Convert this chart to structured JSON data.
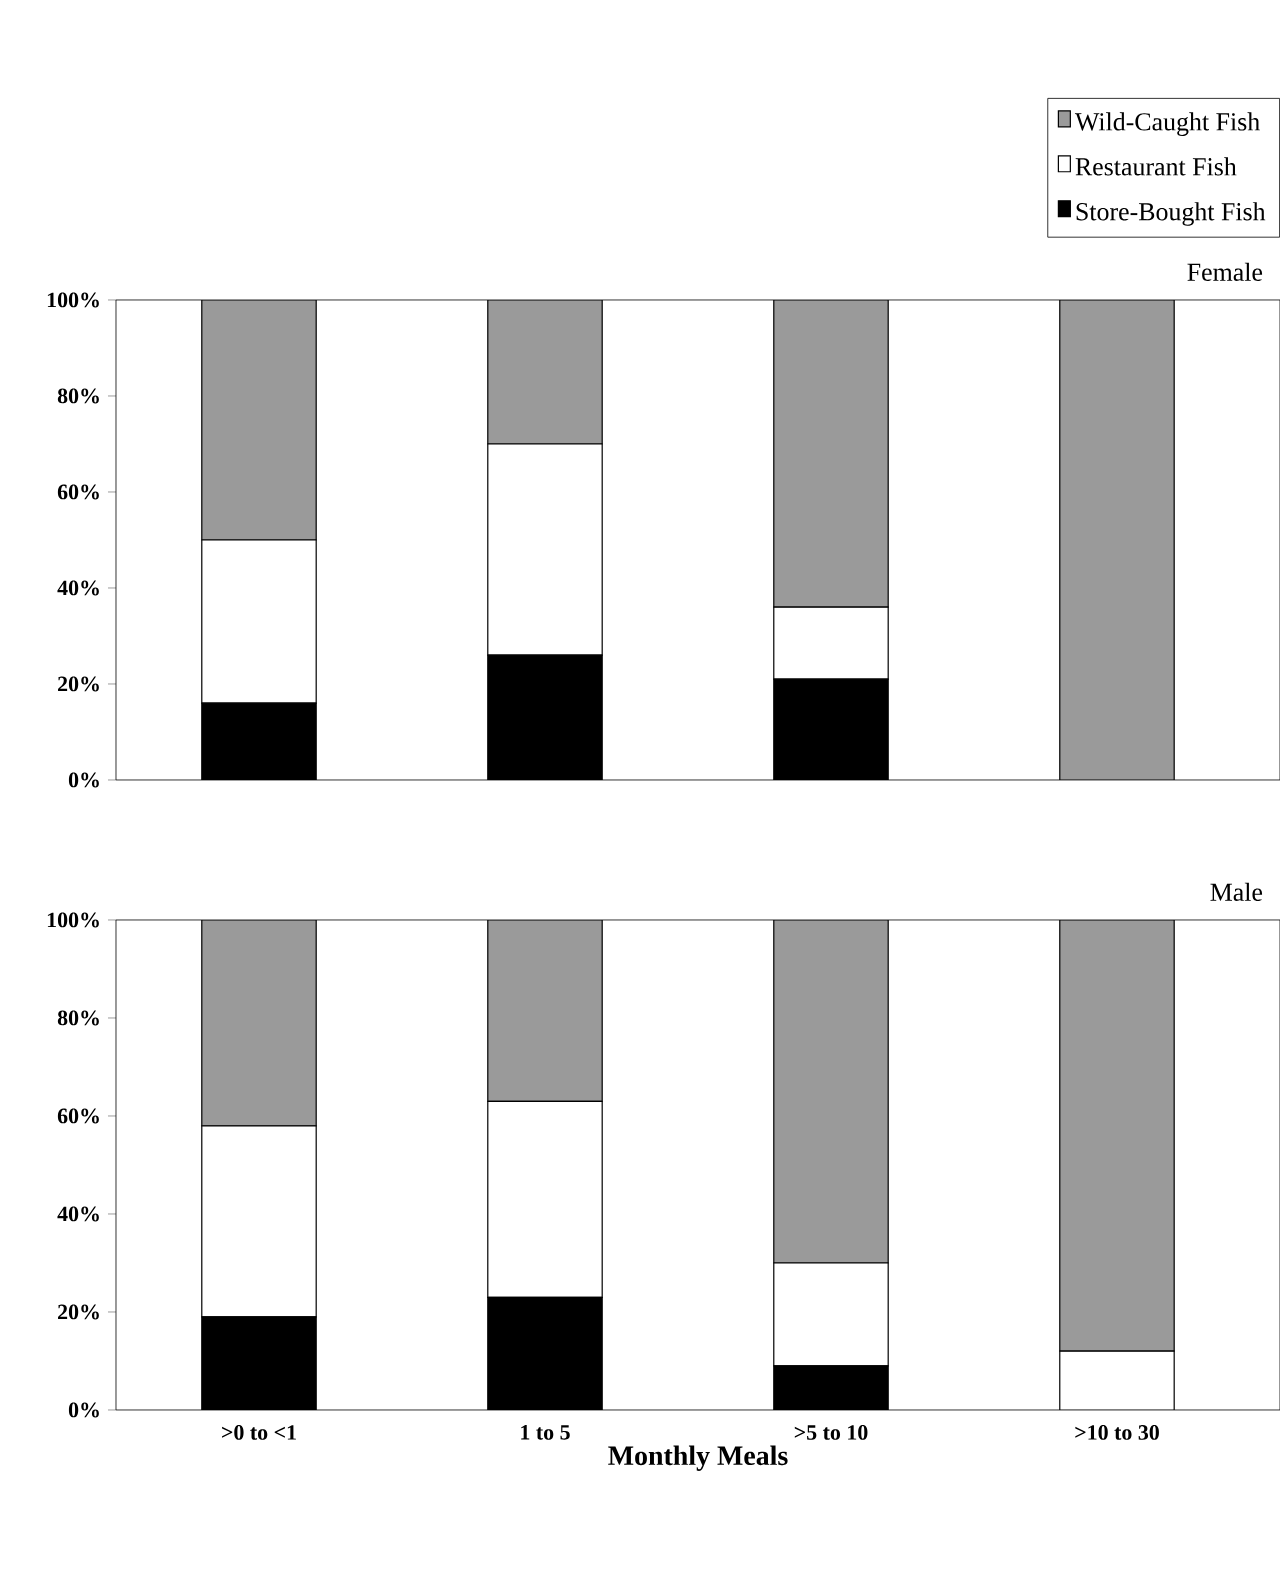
{
  "chart_data": [
    {
      "type": "bar",
      "stacked": true,
      "title": "Female",
      "categories": [
        null,
        null,
        null,
        null
      ],
      "series": [
        {
          "name": "Store-Bought Fish",
          "color": "#000000",
          "values": [
            16,
            26,
            21,
            0
          ]
        },
        {
          "name": "Restaurant Fish",
          "color": "#ffffff",
          "values": [
            34,
            44,
            15,
            0
          ]
        },
        {
          "name": "Wild-Caught Fish",
          "color": "#9a9a9a",
          "values": [
            50,
            30,
            64,
            100
          ]
        }
      ],
      "ylim": [
        0,
        100
      ],
      "yticks": [
        {
          "value": 0,
          "label": "0%"
        },
        {
          "value": 20,
          "label": "20%"
        },
        {
          "value": 40,
          "label": "40%"
        },
        {
          "value": 60,
          "label": "60%"
        },
        {
          "value": 80,
          "label": "80%"
        },
        {
          "value": 100,
          "label": "100%"
        }
      ],
      "legend": "top right",
      "tick_labels": "y",
      "grid": false
    },
    {
      "type": "bar",
      "stacked": true,
      "title": "Male",
      "xlabel": "Monthly Meals",
      "categories": [
        ">0 to <1",
        "1 to 5",
        ">5 to 10",
        ">10 to 30"
      ],
      "series": [
        {
          "color": "#000000",
          "values": [
            19,
            23,
            9,
            0
          ]
        },
        {
          "color": "#ffffff",
          "values": [
            39,
            40,
            21,
            12
          ]
        },
        {
          "color": "#9a9a9a",
          "values": [
            42,
            37,
            70,
            88
          ]
        }
      ],
      "ylim": [
        0,
        100
      ],
      "yticks": [
        {
          "value": 0,
          "label": "0%"
        },
        {
          "value": 20,
          "label": "20%"
        },
        {
          "value": 40,
          "label": "40%"
        },
        {
          "value": 60,
          "label": "60%"
        },
        {
          "value": 80,
          "label": "80%"
        },
        {
          "value": 100,
          "label": "100%"
        }
      ],
      "grid": false
    }
  ]
}
